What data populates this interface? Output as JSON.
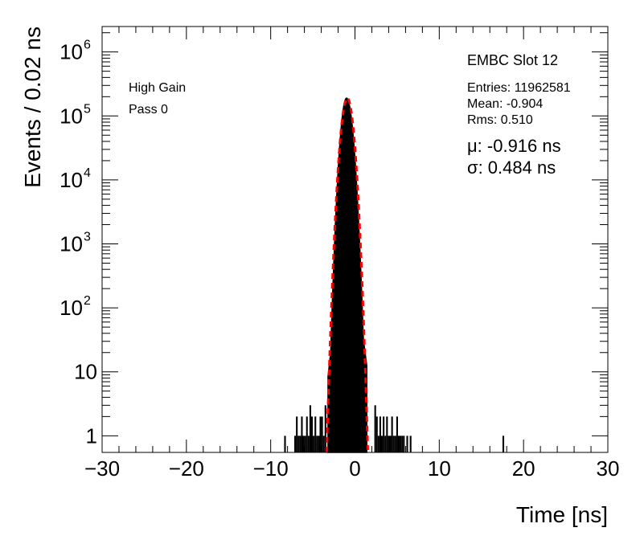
{
  "chart_data": {
    "type": "histogram",
    "xlabel": "Time [ns]",
    "ylabel": "Events / 0.02 ns",
    "xlim": [
      -30,
      30
    ],
    "ylim": [
      0.55,
      2500000
    ],
    "y_scale": "log",
    "x_ticks": [
      {
        "value": -30,
        "label": "−30"
      },
      {
        "value": -20,
        "label": "−20"
      },
      {
        "value": -10,
        "label": "−10"
      },
      {
        "value": 0,
        "label": "0"
      },
      {
        "value": 10,
        "label": "10"
      },
      {
        "value": 20,
        "label": "20"
      },
      {
        "value": 30,
        "label": "30"
      }
    ],
    "y_ticks": [
      {
        "value": 1,
        "label": "1",
        "exp": ""
      },
      {
        "value": 10,
        "label": "10",
        "exp": ""
      },
      {
        "value": 100,
        "label": "10",
        "exp": "2"
      },
      {
        "value": 1000,
        "label": "10",
        "exp": "3"
      },
      {
        "value": 10000,
        "label": "10",
        "exp": "4"
      },
      {
        "value": 100000,
        "label": "10",
        "exp": "5"
      },
      {
        "value": 1000000,
        "label": "10",
        "exp": "6"
      }
    ],
    "annotations": {
      "gain": "High Gain",
      "pass": "Pass 0",
      "title": "EMBC Slot 12",
      "entries": "Entries: 11962581",
      "mean": "Mean: -0.904",
      "rms": "Rms: 0.510",
      "mu": "μ: -0.916 ns",
      "sigma": "σ: 0.484 ns"
    },
    "histogram": {
      "peak_x": -1.0,
      "peak_y": 190000,
      "core_range": [
        -3.2,
        1.4
      ],
      "left_tail_bins": [
        [
          -7.1,
          1
        ],
        [
          -6.9,
          2
        ],
        [
          -6.7,
          1
        ],
        [
          -6.5,
          1
        ],
        [
          -6.3,
          2
        ],
        [
          -6.1,
          1
        ],
        [
          -5.9,
          1
        ],
        [
          -5.7,
          2
        ],
        [
          -5.5,
          1
        ],
        [
          -5.3,
          3
        ],
        [
          -5.1,
          2
        ],
        [
          -4.9,
          1
        ],
        [
          -4.7,
          2
        ],
        [
          -4.5,
          1
        ],
        [
          -4.3,
          1
        ],
        [
          -4.1,
          2
        ],
        [
          -3.9,
          2
        ],
        [
          -3.7,
          1
        ],
        [
          -3.5,
          3
        ]
      ],
      "right_tail_bins": [
        [
          2.4,
          3
        ],
        [
          2.6,
          2
        ],
        [
          2.8,
          1
        ],
        [
          3.0,
          2
        ],
        [
          3.2,
          1
        ],
        [
          3.4,
          2
        ],
        [
          3.6,
          1
        ],
        [
          3.8,
          2
        ],
        [
          4.0,
          1
        ],
        [
          4.2,
          1
        ],
        [
          4.4,
          2
        ],
        [
          4.6,
          1
        ],
        [
          4.8,
          1
        ],
        [
          5.0,
          2
        ],
        [
          5.2,
          1
        ],
        [
          5.4,
          1
        ],
        [
          5.6,
          1
        ],
        [
          5.8,
          1
        ],
        [
          6.2,
          1
        ],
        [
          6.6,
          1
        ]
      ],
      "isolated_bins": [
        [
          -8.3,
          1
        ],
        [
          17.6,
          1
        ]
      ]
    },
    "fit": {
      "function": "gaussian",
      "mu": -0.916,
      "sigma": 0.484,
      "amplitude": 190000,
      "style": "dashed",
      "color": "#ff0000"
    },
    "histogram_color": "#000000",
    "grid": false
  }
}
